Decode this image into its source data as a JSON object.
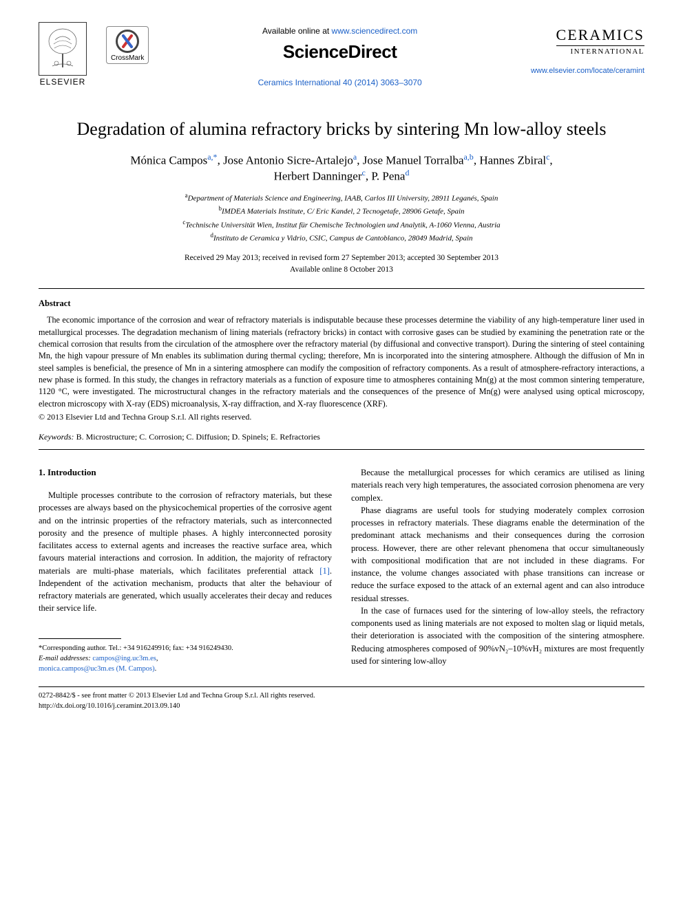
{
  "header": {
    "elsevier_label": "ELSEVIER",
    "crossmark_label": "CrossMark",
    "available_text": "Available online at ",
    "available_url": "www.sciencedirect.com",
    "sciencedirect": "ScienceDirect",
    "journal_ref": "Ceramics International 40 (2014) 3063–3070",
    "ceramics_title": "CERAMICS",
    "ceramics_sub": "INTERNATIONAL",
    "journal_url": "www.elsevier.com/locate/ceramint"
  },
  "article": {
    "title": "Degradation of alumina refractory bricks by sintering Mn low-alloy steels",
    "authors_line1_parts": [
      {
        "name": "Mónica Campos",
        "sup": "a,*"
      },
      {
        "name": ", Jose Antonio Sicre-Artalejo",
        "sup": "a"
      },
      {
        "name": ", Jose Manuel Torralba",
        "sup": "a,b"
      },
      {
        "name": ", Hannes Zbiral",
        "sup": "c"
      },
      {
        "name": ",",
        "sup": ""
      }
    ],
    "authors_line2_parts": [
      {
        "name": "Herbert Danninger",
        "sup": "c"
      },
      {
        "name": ", P. Pena",
        "sup": "d"
      }
    ],
    "affiliations": [
      {
        "sup": "a",
        "text": "Department of Materials Science and Engineering, IAAB, Carlos III University, 28911 Leganés, Spain"
      },
      {
        "sup": "b",
        "text": "IMDEA Materials Institute, C/ Eric Kandel, 2 Tecnogetafe, 28906 Getafe, Spain"
      },
      {
        "sup": "c",
        "text": "Technische Universität Wien, Institut für Chemische Technologien und Analytik, A-1060 Vienna, Austria"
      },
      {
        "sup": "d",
        "text": "Instituto de Ceramica y Vidrio, CSIC, Campus de Cantoblanco, 28049 Madrid, Spain"
      }
    ],
    "dates_line1": "Received 29 May 2013; received in revised form 27 September 2013; accepted 30 September 2013",
    "dates_line2": "Available online 8 October 2013"
  },
  "abstract": {
    "heading": "Abstract",
    "body": "The economic importance of the corrosion and wear of refractory materials is indisputable because these processes determine the viability of any high-temperature liner used in metallurgical processes. The degradation mechanism of lining materials (refractory bricks) in contact with corrosive gases can be studied by examining the penetration rate or the chemical corrosion that results from the circulation of the atmosphere over the refractory material (by diffusional and convective transport). During the sintering of steel containing Mn, the high vapour pressure of Mn enables its sublimation during thermal cycling; therefore, Mn is incorporated into the sintering atmosphere. Although the diffusion of Mn in steel samples is beneficial, the presence of Mn in a sintering atmosphere can modify the composition of refractory components. As a result of atmosphere-refractory interactions, a new phase is formed. In this study, the changes in refractory materials as a function of exposure time to atmospheres containing Mn(g) at the most common sintering temperature, 1120 °C, were investigated. The microstructural changes in the refractory materials and the consequences of the presence of Mn(g) were analysed using optical microscopy, electron microscopy with X-ray (EDS) microanalysis, X-ray diffraction, and X-ray fluorescence (XRF).",
    "copyright": "© 2013 Elsevier Ltd and Techna Group S.r.l. All rights reserved.",
    "keywords_label": "Keywords:",
    "keywords": "B. Microstructure; C. Corrosion; C. Diffusion; D. Spinels; E. Refractories"
  },
  "body": {
    "section_heading": "1.  Introduction",
    "col1_p1_a": "Multiple processes contribute to the corrosion of refractory materials, but these processes are always based on the physicochemical properties of the corrosive agent and on the intrinsic properties of the refractory materials, such as interconnected porosity and the presence of multiple phases. A highly interconnected porosity facilitates access to external agents and increases the reactive surface area, which favours material interactions and corrosion. In addition, the majority of refractory materials are multi-phase materials, which facilitates preferential attack ",
    "col1_ref": "[1]",
    "col1_p1_b": ". Independent of the activation mechanism, products that alter the behaviour of refractory materials are generated, which usually accelerates their decay and reduces their service life.",
    "col2_p1": "Because the metallurgical processes for which ceramics are utilised as lining materials reach very high temperatures, the associated corrosion phenomena are very complex.",
    "col2_p2": "Phase diagrams are useful tools for studying moderately complex corrosion processes in refractory materials. These diagrams enable the determination of the predominant attack mechanisms and their consequences during the corrosion process. However, there are other relevant phenomena that occur simultaneously with compositional modification that are not included in these diagrams. For instance, the volume changes associated with phase transitions can increase or reduce the surface exposed to the attack of an external agent and can also introduce residual stresses.",
    "col2_p3": "In the case of furnaces used for the sintering of low-alloy steels, the refractory components used as lining materials are not exposed to molten slag or liquid metals, their deterioration is associated with the composition of the sintering atmosphere. Reducing atmospheres composed of 90%vN₂–10%vH₂ mixtures are most frequently used for sintering low-alloy"
  },
  "footnote": {
    "corr_label": "*Corresponding author. Tel.: +34 916249916; fax: +34 916249430.",
    "email_label": "E-mail addresses:",
    "email1": "campos@ing.uc3m.es",
    "email2": "monica.campos@uc3m.es (M. Campos)"
  },
  "footer": {
    "line1": "0272-8842/$ - see front matter © 2013 Elsevier Ltd and Techna Group S.r.l. All rights reserved.",
    "line2": "http://dx.doi.org/10.1016/j.ceramint.2013.09.140"
  },
  "colors": {
    "link": "#1a5fc7",
    "text": "#000000",
    "bg": "#ffffff"
  }
}
